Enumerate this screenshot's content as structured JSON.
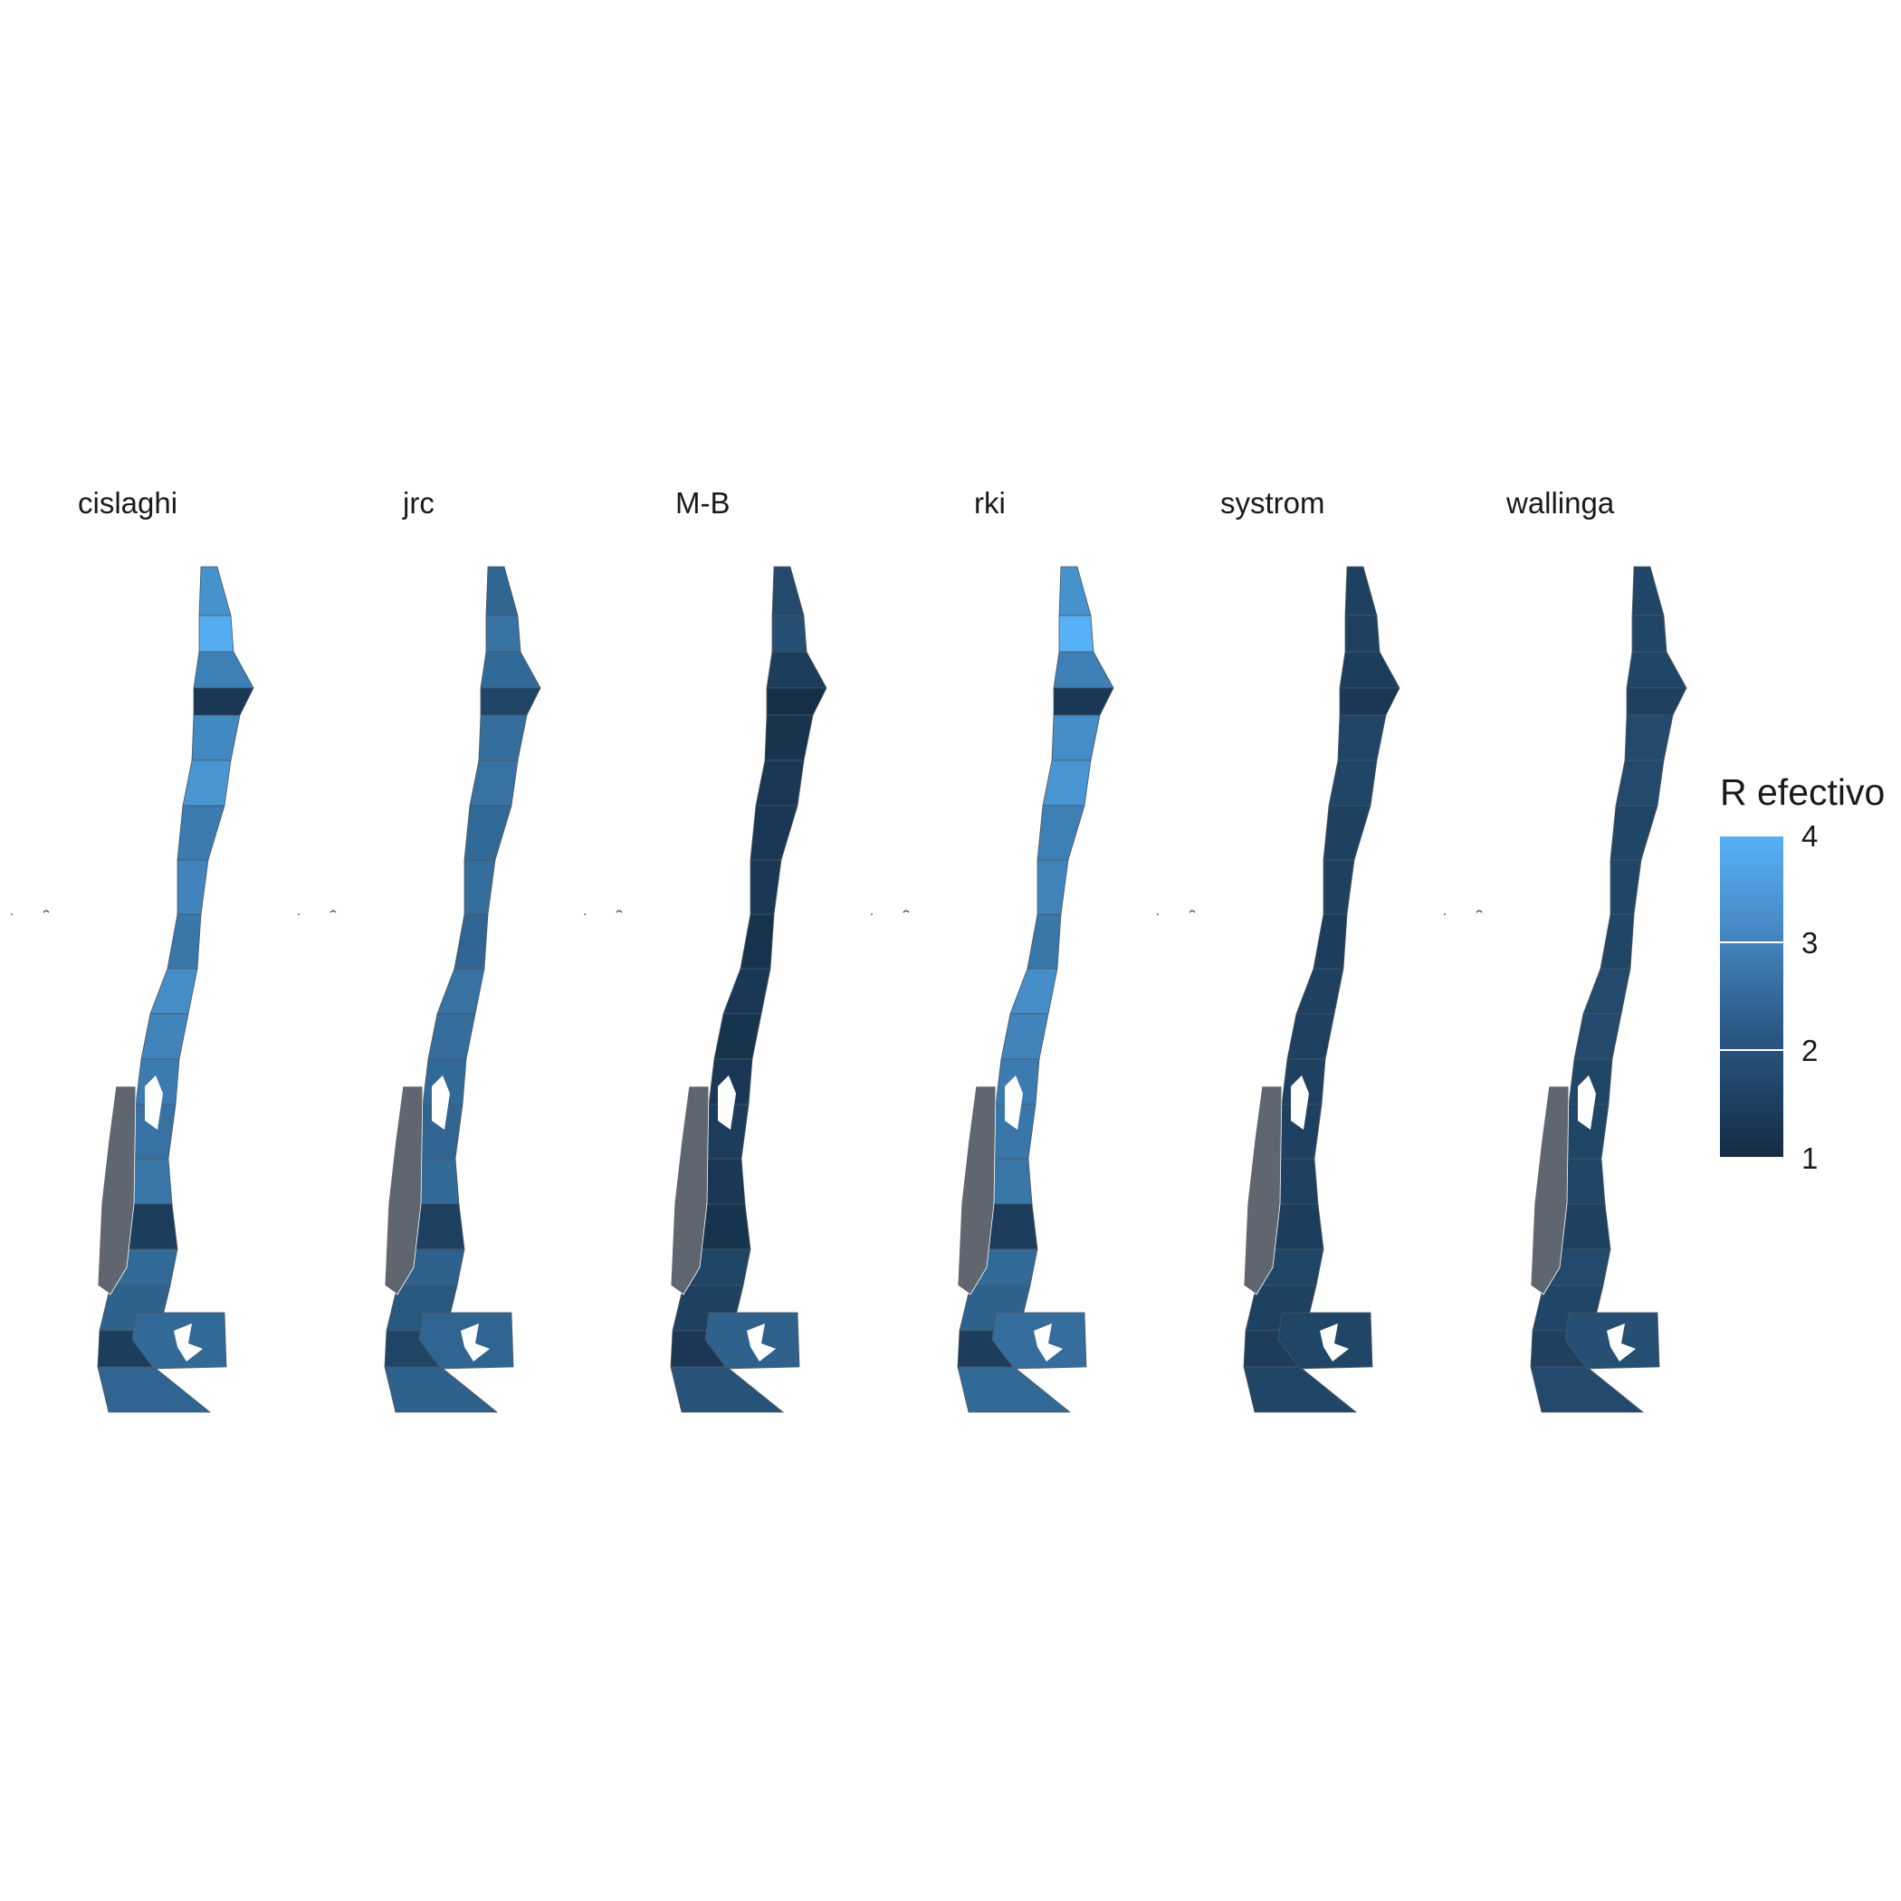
{
  "panels": [
    {
      "label": "cislaghi",
      "tones": [
        3.3,
        3.9,
        2.9,
        1.3,
        3.1,
        3.4,
        2.8,
        3.0,
        2.7,
        3.2,
        3.0,
        2.8,
        2.6,
        2.7,
        1.4,
        2.4,
        2.2,
        1.4,
        2.3,
        2.4
      ]
    },
    {
      "label": "jrc",
      "tones": [
        2.3,
        2.6,
        2.4,
        1.6,
        2.5,
        2.6,
        2.4,
        2.5,
        2.3,
        2.6,
        2.5,
        2.4,
        2.3,
        2.4,
        1.5,
        2.2,
        2.0,
        1.6,
        2.2,
        2.3
      ]
    },
    {
      "label": "M-B",
      "tones": [
        1.7,
        1.8,
        1.4,
        1.1,
        1.2,
        1.3,
        1.3,
        1.3,
        1.2,
        1.3,
        1.2,
        1.3,
        1.4,
        1.3,
        1.2,
        1.6,
        1.5,
        1.3,
        1.9,
        2.2
      ]
    },
    {
      "label": "rki",
      "tones": [
        3.3,
        4.0,
        2.9,
        1.3,
        3.2,
        3.4,
        2.9,
        3.0,
        2.7,
        3.2,
        3.0,
        2.8,
        2.7,
        2.7,
        1.4,
        2.4,
        2.2,
        1.4,
        2.4,
        2.5
      ]
    },
    {
      "label": "systrom",
      "tones": [
        1.5,
        1.5,
        1.4,
        1.3,
        1.6,
        1.6,
        1.5,
        1.5,
        1.4,
        1.5,
        1.5,
        1.5,
        1.5,
        1.5,
        1.4,
        1.6,
        1.5,
        1.4,
        1.6,
        1.6
      ]
    },
    {
      "label": "wallinga",
      "tones": [
        1.6,
        1.6,
        1.6,
        1.5,
        1.7,
        1.7,
        1.6,
        1.6,
        1.6,
        1.7,
        1.7,
        1.6,
        1.6,
        1.6,
        1.5,
        1.7,
        1.6,
        1.5,
        1.7,
        1.8
      ]
    }
  ],
  "legend": {
    "title": "R efectivo",
    "min": 1,
    "max": 4,
    "low_color": "#132B43",
    "high_color": "#56B1F7",
    "breaks": [
      "1",
      "2",
      "3",
      "4"
    ]
  }
}
